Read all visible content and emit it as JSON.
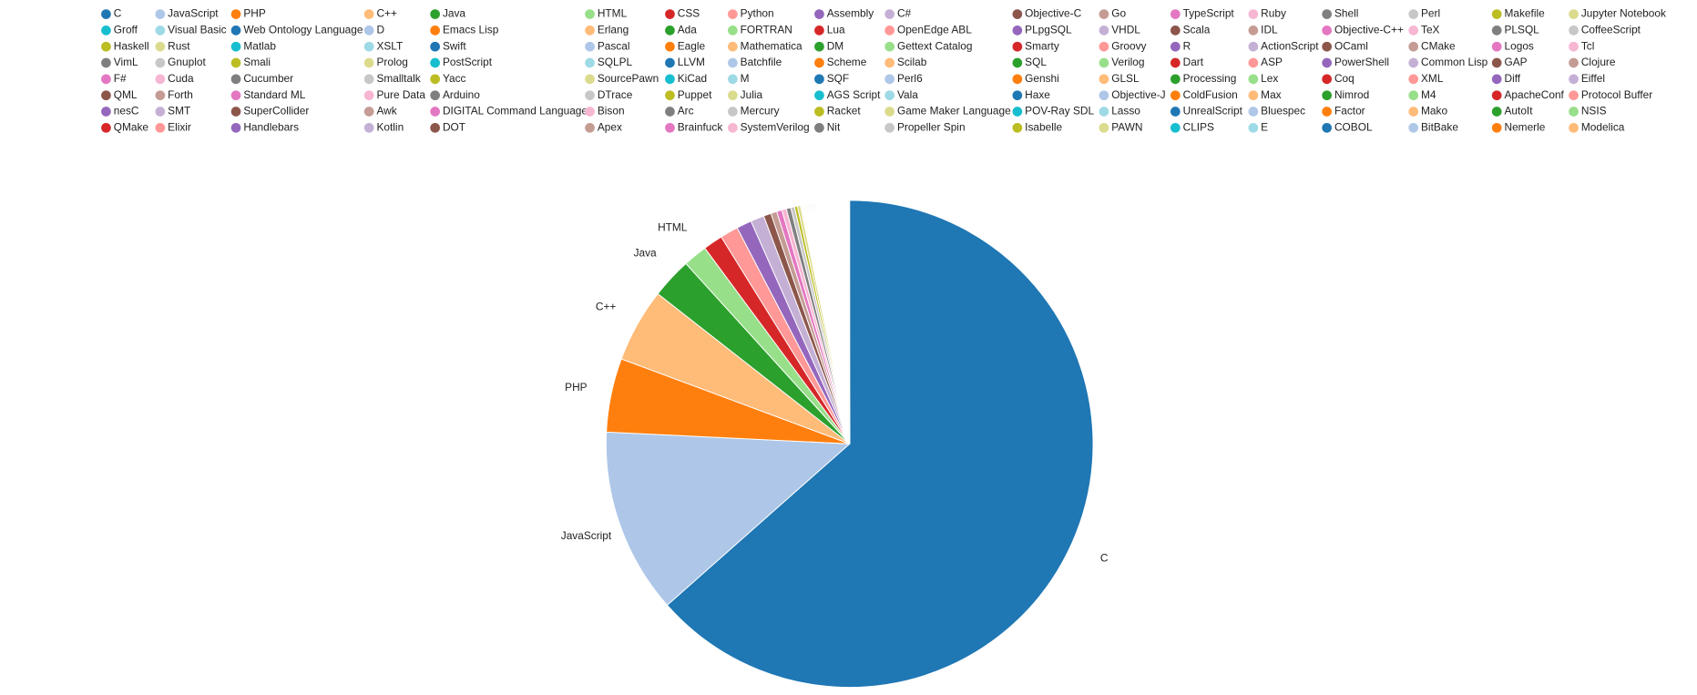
{
  "chart_data": {
    "type": "pie",
    "categories": [
      "C",
      "JavaScript",
      "PHP",
      "C++",
      "Java",
      "HTML",
      "CSS",
      "Python",
      "Assembly",
      "C#",
      "Objective-C",
      "Go",
      "TypeScript",
      "Ruby",
      "Shell",
      "Perl",
      "Makefile",
      "Jupyter Notebook",
      "Groff",
      "Visual Basic",
      "Web Ontology Language",
      "D",
      "Emacs Lisp",
      "Erlang",
      "Ada",
      "FORTRAN",
      "Lua",
      "OpenEdge ABL",
      "PLpgSQL",
      "VHDL",
      "Scala",
      "IDL",
      "Objective-C++",
      "TeX",
      "PLSQL",
      "CoffeeScript",
      "Haskell",
      "Rust",
      "Matlab",
      "XSLT",
      "Swift",
      "Pascal",
      "Eagle",
      "Mathematica",
      "DM",
      "Gettext Catalog",
      "Smarty",
      "Groovy",
      "R",
      "ActionScript",
      "OCaml",
      "CMake",
      "Logos",
      "Tcl",
      "VimL",
      "Gnuplot",
      "Smali",
      "Prolog",
      "PostScript",
      "SQLPL",
      "LLVM",
      "Batchfile",
      "Scheme",
      "Scilab",
      "SQL",
      "Verilog",
      "Dart",
      "ASP",
      "PowerShell",
      "Common Lisp",
      "GAP",
      "Clojure",
      "F#",
      "Cuda",
      "Cucumber",
      "Smalltalk",
      "Yacc",
      "SourcePawn",
      "KiCad",
      "M",
      "SQF",
      "Perl6",
      "Genshi",
      "GLSL",
      "Processing",
      "Lex",
      "Coq",
      "XML",
      "Diff",
      "Eiffel",
      "QML",
      "Forth",
      "Standard ML",
      "Pure Data",
      "Arduino",
      "DTrace",
      "Puppet",
      "Julia",
      "AGS Script",
      "Vala",
      "Haxe",
      "Objective-J",
      "ColdFusion",
      "Max",
      "Nimrod",
      "M4",
      "ApacheConf",
      "Protocol Buffer",
      "nesC",
      "SMT",
      "SuperCollider",
      "Awk",
      "DIGITAL Command Language",
      "Bison",
      "Arc",
      "Mercury",
      "Racket",
      "Game Maker Language",
      "POV-Ray SDL",
      "Lasso",
      "UnrealScript",
      "Bluespec",
      "Factor",
      "Mako",
      "AutoIt",
      "NSIS",
      "QMake",
      "Elixir",
      "Handlebars",
      "Kotlin",
      "DOT",
      "Apex",
      "Brainfuck",
      "SystemVerilog",
      "Nit",
      "Propeller Spin",
      "Isabelle",
      "PAWN",
      "CLIPS",
      "E",
      "COBOL",
      "BitBake",
      "Nemerle",
      "Modelica"
    ],
    "values": [
      63.5,
      12.3,
      4.9,
      4.9,
      2.7,
      1.6,
      1.3,
      1.2,
      1.0,
      0.9,
      0.5,
      0.4,
      0.35,
      0.3,
      0.3,
      0.25,
      0.2,
      0.2,
      0.06,
      0.06,
      0.06,
      0.06,
      0.06,
      0.06,
      0.06,
      0.06,
      0.06,
      0.06,
      0.06,
      0.06,
      0.06,
      0.06,
      0.06,
      0.06,
      0.06,
      0.06,
      0.04,
      0.04,
      0.04,
      0.04,
      0.04,
      0.04,
      0.04,
      0.04,
      0.04,
      0.04,
      0.04,
      0.04,
      0.04,
      0.04,
      0.04,
      0.04,
      0.04,
      0.04,
      0.03,
      0.03,
      0.03,
      0.03,
      0.03,
      0.03,
      0.03,
      0.03,
      0.03,
      0.03,
      0.03,
      0.03,
      0.03,
      0.03,
      0.03,
      0.03,
      0.03,
      0.03,
      0.02,
      0.02,
      0.02,
      0.02,
      0.02,
      0.02,
      0.02,
      0.02,
      0.02,
      0.02,
      0.02,
      0.02,
      0.02,
      0.02,
      0.02,
      0.02,
      0.02,
      0.02,
      0.01,
      0.01,
      0.01,
      0.01,
      0.01,
      0.01,
      0.01,
      0.01,
      0.01,
      0.01,
      0.01,
      0.01,
      0.01,
      0.01,
      0.01,
      0.01,
      0.01,
      0.01,
      0.01,
      0.01,
      0.01,
      0.01,
      0.01,
      0.01,
      0.01,
      0.01,
      0.01,
      0.01,
      0.01,
      0.01,
      0.01,
      0.01,
      0.01,
      0.01,
      0.01,
      0.01,
      0.01,
      0.01,
      0.01,
      0.01,
      0.01,
      0.01,
      0.01,
      0.01,
      0.01,
      0.01,
      0.01,
      0.01,
      0.01,
      0.01,
      0.01,
      0.01,
      0.01,
      0.01
    ],
    "colors": [
      "#1f77b4",
      "#aec7e8",
      "#ff7f0e",
      "#ffbb78",
      "#2ca02c",
      "#98df8a",
      "#d62728",
      "#ff9896",
      "#9467bd",
      "#c5b0d5",
      "#8c564b",
      "#c49c94",
      "#e377c2",
      "#f7b6d2",
      "#7f7f7f",
      "#c7c7c7",
      "#bcbd22",
      "#dbdb8d",
      "#17becf",
      "#9edae5"
    ],
    "legend": "top"
  }
}
